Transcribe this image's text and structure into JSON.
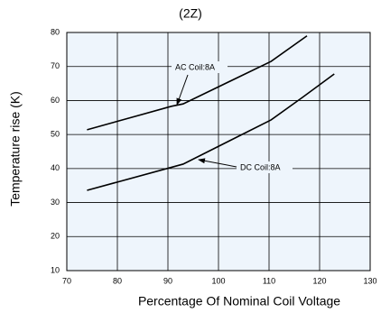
{
  "chart_data": {
    "type": "line",
    "title": "(2Z)",
    "x_label": "Percentage Of Nominal Coil Voltage",
    "y_label": "Temperature rise (K)",
    "series": [
      {
        "name": "AC Coil:8A",
        "color": "#000000",
        "x": [
          74,
          90.7,
          93,
          110.4,
          117.5
        ],
        "values": [
          51.4,
          58.3,
          59,
          71.5,
          79
        ]
      },
      {
        "name": "DC Coil:8A",
        "color": "#000000",
        "x": [
          74,
          93,
          110.4,
          116.6,
          122.9
        ],
        "values": [
          33.6,
          41.3,
          54.3,
          60.9,
          67.8
        ]
      }
    ],
    "xlim": [
      70,
      130
    ],
    "xticks": [
      70,
      80,
      90,
      100,
      110,
      120,
      130
    ],
    "ylim": [
      10,
      80
    ],
    "yticks": [
      10,
      20,
      30,
      40,
      50,
      60,
      70,
      80
    ],
    "grid": true,
    "background": "#eef5fc"
  }
}
